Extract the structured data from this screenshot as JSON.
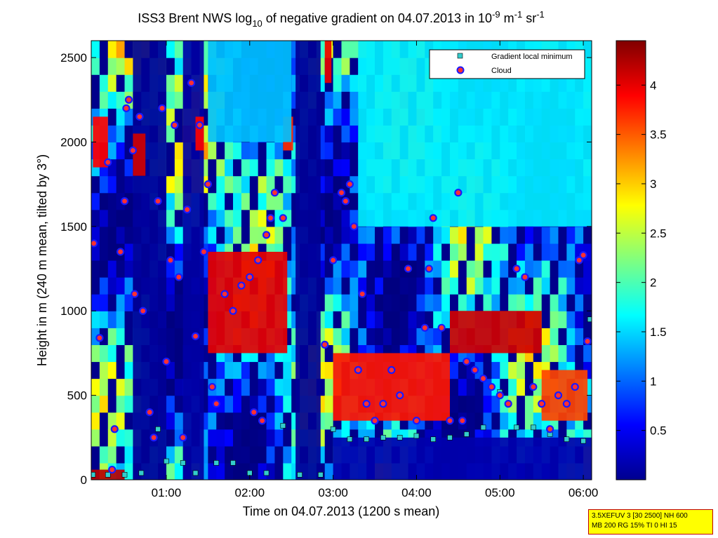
{
  "chart_data": {
    "type": "heatmap",
    "title": {
      "prefix": "ISS3 Brent NWS log",
      "sub": "10",
      "mid": " of negative gradient on 04.07.2013 in 10",
      "sup1": "-9",
      "unit1": " m",
      "sup2": "-1",
      "unit2": " sr",
      "sup3": "-1"
    },
    "xlabel": "Time on 04.07.2013 (1200 s mean)",
    "ylabel": "Height in m (240 m mean, tilted by 3°)",
    "xlim_hours": [
      0.1,
      6.1
    ],
    "ylim": [
      0,
      2600
    ],
    "x_ticks": [
      {
        "v": 1,
        "label": "01:00"
      },
      {
        "v": 2,
        "label": "02:00"
      },
      {
        "v": 3,
        "label": "03:00"
      },
      {
        "v": 4,
        "label": "04:00"
      },
      {
        "v": 5,
        "label": "05:00"
      },
      {
        "v": 6,
        "label": "06:00"
      }
    ],
    "y_ticks": [
      {
        "v": 0,
        "label": "0"
      },
      {
        "v": 500,
        "label": "500"
      },
      {
        "v": 1000,
        "label": "1000"
      },
      {
        "v": 1500,
        "label": "1500"
      },
      {
        "v": 2000,
        "label": "2000"
      },
      {
        "v": 2500,
        "label": "2500"
      }
    ],
    "colorbar": {
      "colormap": "jet",
      "clim": [
        0,
        4.45
      ],
      "ticks": [
        {
          "v": 0.5,
          "label": "0.5"
        },
        {
          "v": 1,
          "label": "1"
        },
        {
          "v": 1.5,
          "label": "1.5"
        },
        {
          "v": 2,
          "label": "2"
        },
        {
          "v": 2.5,
          "label": "2.5"
        },
        {
          "v": 3,
          "label": "3"
        },
        {
          "v": 3.5,
          "label": "3.5"
        },
        {
          "v": 4,
          "label": "4"
        }
      ]
    },
    "legend": {
      "placement": "top-right",
      "entries": [
        {
          "name": "Gradient local minimum",
          "marker": "square",
          "color": "#33cccc"
        },
        {
          "name": "Cloud",
          "marker": "circle",
          "color": "#ff3030"
        }
      ]
    },
    "heatmap_features": [
      {
        "t0": 0.6,
        "t1": 1.0,
        "h0": 0,
        "h1": 2600,
        "v": 0.1
      },
      {
        "t0": 1.2,
        "t1": 1.45,
        "h0": 0,
        "h1": 2600,
        "v": 0.15
      },
      {
        "t0": 2.55,
        "t1": 2.85,
        "h0": 0,
        "h1": 2600,
        "v": 0.1
      },
      {
        "t0": 0.12,
        "t1": 0.3,
        "h0": 1850,
        "h1": 2150,
        "v": 3.9
      },
      {
        "t0": 0.6,
        "t1": 0.75,
        "h0": 1800,
        "h1": 2050,
        "v": 4.1
      },
      {
        "t0": 1.35,
        "t1": 1.45,
        "h0": 1950,
        "h1": 2150,
        "v": 3.9
      },
      {
        "t0": 2.4,
        "t1": 2.52,
        "h0": 1950,
        "h1": 2150,
        "v": 3.7
      },
      {
        "t0": 2.9,
        "t1": 2.98,
        "h0": 2350,
        "h1": 2600,
        "v": 4.0
      },
      {
        "t0": 0.1,
        "t1": 0.5,
        "h0": 0,
        "h1": 60,
        "v": 4.2
      },
      {
        "t0": 1.5,
        "t1": 2.5,
        "h0": 2000,
        "h1": 2600,
        "v": 1.4
      },
      {
        "t0": 3.3,
        "t1": 6.1,
        "h0": 1500,
        "h1": 2600,
        "v": 1.6
      },
      {
        "t0": 3.0,
        "t1": 6.1,
        "h0": 0,
        "h1": 250,
        "v": 0.2
      },
      {
        "t0": 4.4,
        "t1": 5.5,
        "h0": 750,
        "h1": 1000,
        "v": 4.1
      },
      {
        "t0": 3.0,
        "t1": 4.4,
        "h0": 350,
        "h1": 750,
        "v": 3.8
      },
      {
        "t0": 1.5,
        "t1": 2.45,
        "h0": 750,
        "h1": 1350,
        "v": 4.0
      },
      {
        "t0": 5.5,
        "t1": 6.05,
        "h0": 350,
        "h1": 650,
        "v": 3.6
      }
    ],
    "gradient_min_series": [
      {
        "t": 0.12,
        "h": 30
      },
      {
        "t": 0.3,
        "h": 30
      },
      {
        "t": 0.5,
        "h": 30
      },
      {
        "t": 0.7,
        "h": 40
      },
      {
        "t": 0.9,
        "h": 300
      },
      {
        "t": 1.0,
        "h": 110
      },
      {
        "t": 1.2,
        "h": 100
      },
      {
        "t": 1.35,
        "h": 40
      },
      {
        "t": 1.6,
        "h": 100
      },
      {
        "t": 1.8,
        "h": 100
      },
      {
        "t": 2.0,
        "h": 40
      },
      {
        "t": 2.2,
        "h": 40
      },
      {
        "t": 2.4,
        "h": 320
      },
      {
        "t": 2.6,
        "h": 30
      },
      {
        "t": 2.85,
        "h": 30
      },
      {
        "t": 3.0,
        "h": 300
      },
      {
        "t": 3.2,
        "h": 240
      },
      {
        "t": 3.4,
        "h": 240
      },
      {
        "t": 3.6,
        "h": 250
      },
      {
        "t": 3.8,
        "h": 250
      },
      {
        "t": 4.0,
        "h": 260
      },
      {
        "t": 4.2,
        "h": 240
      },
      {
        "t": 4.4,
        "h": 250
      },
      {
        "t": 4.6,
        "h": 270
      },
      {
        "t": 4.8,
        "h": 310
      },
      {
        "t": 5.0,
        "h": 520
      },
      {
        "t": 5.2,
        "h": 310
      },
      {
        "t": 5.4,
        "h": 310
      },
      {
        "t": 5.6,
        "h": 270
      },
      {
        "t": 5.8,
        "h": 240
      },
      {
        "t": 6.0,
        "h": 230
      },
      {
        "t": 6.08,
        "h": 950
      }
    ],
    "cloud_series": [
      {
        "t": 0.13,
        "h": 1400
      },
      {
        "t": 0.2,
        "h": 840
      },
      {
        "t": 0.3,
        "h": 1880
      },
      {
        "t": 0.35,
        "h": 60
      },
      {
        "t": 0.38,
        "h": 300
      },
      {
        "t": 0.45,
        "h": 1350
      },
      {
        "t": 0.5,
        "h": 1650
      },
      {
        "t": 0.52,
        "h": 2200
      },
      {
        "t": 0.55,
        "h": 2250
      },
      {
        "t": 0.6,
        "h": 1950
      },
      {
        "t": 0.62,
        "h": 1100
      },
      {
        "t": 0.68,
        "h": 2150
      },
      {
        "t": 0.72,
        "h": 1000
      },
      {
        "t": 0.8,
        "h": 400
      },
      {
        "t": 0.85,
        "h": 250
      },
      {
        "t": 0.9,
        "h": 1650
      },
      {
        "t": 0.95,
        "h": 2200
      },
      {
        "t": 1.0,
        "h": 700
      },
      {
        "t": 1.05,
        "h": 1300
      },
      {
        "t": 1.1,
        "h": 2100
      },
      {
        "t": 1.15,
        "h": 1200
      },
      {
        "t": 1.2,
        "h": 250
      },
      {
        "t": 1.25,
        "h": 1600
      },
      {
        "t": 1.3,
        "h": 2350
      },
      {
        "t": 1.35,
        "h": 850
      },
      {
        "t": 1.4,
        "h": 2100
      },
      {
        "t": 1.45,
        "h": 1350
      },
      {
        "t": 1.5,
        "h": 1750
      },
      {
        "t": 1.55,
        "h": 550
      },
      {
        "t": 1.6,
        "h": 450
      },
      {
        "t": 1.7,
        "h": 1100
      },
      {
        "t": 1.8,
        "h": 1000
      },
      {
        "t": 1.9,
        "h": 1150
      },
      {
        "t": 2.0,
        "h": 1200
      },
      {
        "t": 2.1,
        "h": 1300
      },
      {
        "t": 2.2,
        "h": 1450
      },
      {
        "t": 2.25,
        "h": 1550
      },
      {
        "t": 2.3,
        "h": 1700
      },
      {
        "t": 2.4,
        "h": 1550
      },
      {
        "t": 2.05,
        "h": 400
      },
      {
        "t": 2.15,
        "h": 350
      },
      {
        "t": 2.9,
        "h": 800
      },
      {
        "t": 3.0,
        "h": 1300
      },
      {
        "t": 3.1,
        "h": 1700
      },
      {
        "t": 3.15,
        "h": 1650
      },
      {
        "t": 3.2,
        "h": 1750
      },
      {
        "t": 3.25,
        "h": 1500
      },
      {
        "t": 3.3,
        "h": 650
      },
      {
        "t": 3.35,
        "h": 1100
      },
      {
        "t": 3.4,
        "h": 450
      },
      {
        "t": 3.5,
        "h": 350
      },
      {
        "t": 3.6,
        "h": 450
      },
      {
        "t": 3.7,
        "h": 650
      },
      {
        "t": 3.8,
        "h": 500
      },
      {
        "t": 3.9,
        "h": 1250
      },
      {
        "t": 4.0,
        "h": 350
      },
      {
        "t": 4.1,
        "h": 900
      },
      {
        "t": 4.15,
        "h": 1250
      },
      {
        "t": 4.2,
        "h": 1550
      },
      {
        "t": 4.3,
        "h": 900
      },
      {
        "t": 4.4,
        "h": 350
      },
      {
        "t": 4.5,
        "h": 1700
      },
      {
        "t": 4.55,
        "h": 350
      },
      {
        "t": 4.6,
        "h": 700
      },
      {
        "t": 4.7,
        "h": 650
      },
      {
        "t": 4.8,
        "h": 600
      },
      {
        "t": 4.9,
        "h": 550
      },
      {
        "t": 5.0,
        "h": 500
      },
      {
        "t": 5.1,
        "h": 450
      },
      {
        "t": 5.2,
        "h": 1250
      },
      {
        "t": 5.3,
        "h": 1200
      },
      {
        "t": 5.4,
        "h": 550
      },
      {
        "t": 5.5,
        "h": 450
      },
      {
        "t": 5.6,
        "h": 300
      },
      {
        "t": 5.7,
        "h": 500
      },
      {
        "t": 5.8,
        "h": 450
      },
      {
        "t": 5.9,
        "h": 550
      },
      {
        "t": 5.95,
        "h": 1300
      },
      {
        "t": 6.0,
        "h": 1330
      },
      {
        "t": 6.05,
        "h": 820
      }
    ]
  },
  "info_box": {
    "line1": "3.5XEFUV 3 [30 2500] NH 600",
    "line2": "MB 200 RG 15% TI 0 HI 15"
  }
}
